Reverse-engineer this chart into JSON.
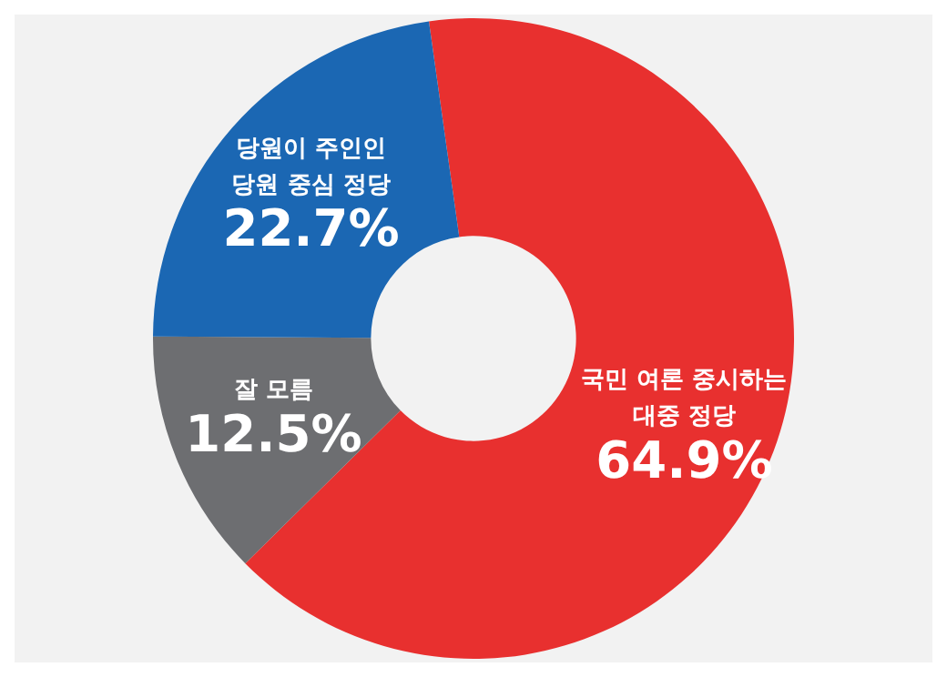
{
  "chart_data": {
    "type": "donut",
    "categories": [
      "국민 여론 중시하는 대중 정당",
      "잘 모름",
      "당원이 주인인 당원 중심 정당"
    ],
    "values": [
      64.9,
      12.5,
      22.7
    ],
    "colors": [
      "#e8302f",
      "#6d6e71",
      "#1b67b3"
    ],
    "value_labels": [
      "64.9%",
      "12.5%",
      "22.7%"
    ],
    "legend": false
  }
}
